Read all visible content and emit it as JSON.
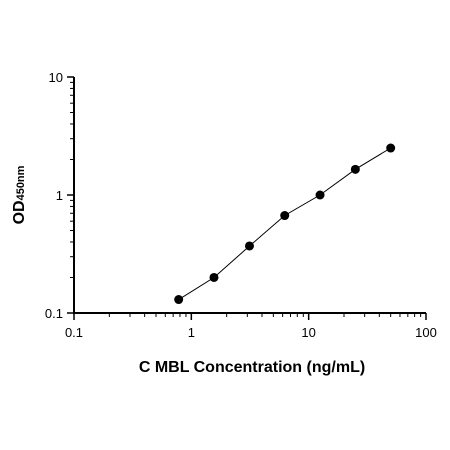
{
  "chart_data": {
    "type": "scatter",
    "xlabel": "C MBL Concentration (ng/mL)",
    "ylabel_main": "OD",
    "ylabel_sub": "450nm",
    "x_scale": "log",
    "y_scale": "log",
    "xlim": [
      0.1,
      100
    ],
    "ylim": [
      0.1,
      10
    ],
    "x_ticks": [
      "0.1",
      "1",
      "10",
      "100"
    ],
    "y_ticks": [
      "0.1",
      "1",
      "10"
    ],
    "grid": false,
    "series": [
      {
        "x": [
          0.78,
          1.56,
          3.13,
          6.25,
          12.5,
          25,
          50
        ],
        "y": [
          0.13,
          0.2,
          0.37,
          0.67,
          1.0,
          1.65,
          2.5
        ],
        "marker": "circle",
        "fit_line": true
      }
    ]
  }
}
